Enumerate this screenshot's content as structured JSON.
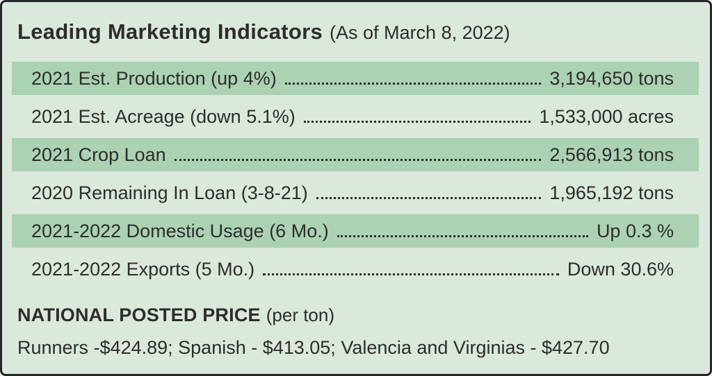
{
  "panel": {
    "title": "Leading Marketing Indicators",
    "title_suffix": "(As of March 8, 2022)"
  },
  "indicators": [
    {
      "label": "2021 Est. Production (up 4%)",
      "value": "3,194,650 tons",
      "highlighted": true
    },
    {
      "label": "2021 Est. Acreage (down 5.1%)",
      "value": "1,533,000 acres",
      "highlighted": false
    },
    {
      "label": "2021 Crop Loan",
      "value": "2,566,913 tons",
      "highlighted": true
    },
    {
      "label": "2020 Remaining In Loan (3-8-21)",
      "value": "1,965,192 tons",
      "highlighted": false
    },
    {
      "label": "2021-2022 Domestic Usage (6 Mo.)",
      "value": "Up 0.3 %",
      "highlighted": true
    },
    {
      "label": "2021-2022 Exports (5 Mo.)",
      "value": "Down 30.6%",
      "highlighted": false
    }
  ],
  "footer": {
    "heading": "NATIONAL POSTED PRICE",
    "heading_suffix": "(per ton)",
    "prices_line": "Runners -$424.89; Spanish - $413.05; Valencia and Virginias - $427.70"
  },
  "colors": {
    "background": "#dbe8dc",
    "row_highlight": "#abd2b3",
    "border": "#26262a",
    "text": "#2d2d2b"
  }
}
